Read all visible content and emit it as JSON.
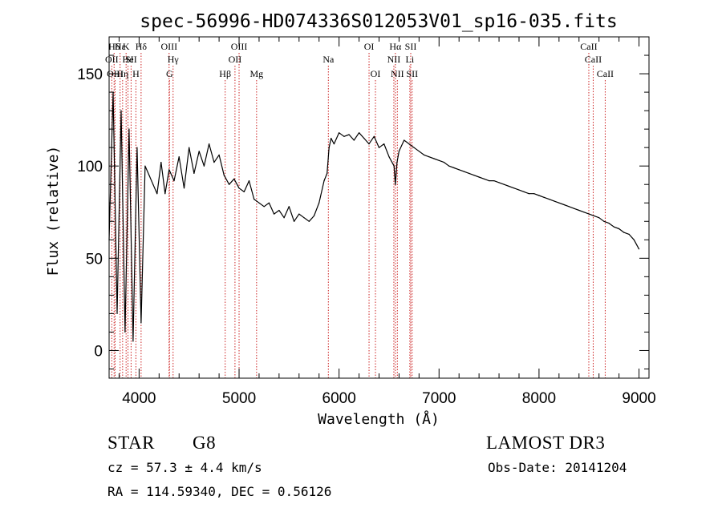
{
  "chart_data": {
    "type": "line",
    "title": "spec-56996-HD074336S012053V01_sp16-035.fits",
    "xlabel": "Wavelength (Å)",
    "ylabel": "Flux (relative)",
    "xlim": [
      3700,
      9100
    ],
    "ylim": [
      -15,
      170
    ],
    "xticks": [
      4000,
      5000,
      6000,
      7000,
      8000,
      9000
    ],
    "yticks": [
      0,
      50,
      100,
      150
    ],
    "series": [
      {
        "name": "flux",
        "x": [
          3700,
          3740,
          3780,
          3820,
          3860,
          3900,
          3940,
          3980,
          4020,
          4060,
          4100,
          4140,
          4180,
          4220,
          4260,
          4300,
          4350,
          4400,
          4450,
          4500,
          4550,
          4600,
          4650,
          4700,
          4750,
          4800,
          4850,
          4900,
          4950,
          5000,
          5050,
          5100,
          5150,
          5200,
          5250,
          5300,
          5350,
          5400,
          5450,
          5500,
          5550,
          5600,
          5650,
          5700,
          5750,
          5800,
          5850,
          5880,
          5900,
          5920,
          5950,
          6000,
          6050,
          6100,
          6150,
          6200,
          6250,
          6300,
          6350,
          6400,
          6450,
          6500,
          6550,
          6563,
          6580,
          6600,
          6650,
          6700,
          6750,
          6800,
          6850,
          6900,
          6950,
          7000,
          7050,
          7100,
          7150,
          7200,
          7250,
          7300,
          7350,
          7400,
          7450,
          7500,
          7550,
          7600,
          7650,
          7700,
          7750,
          7800,
          7850,
          7900,
          7950,
          8000,
          8050,
          8100,
          8150,
          8200,
          8250,
          8300,
          8350,
          8400,
          8450,
          8500,
          8550,
          8600,
          8650,
          8700,
          8750,
          8800,
          8850,
          8900,
          8950,
          9000
        ],
        "values": [
          60,
          140,
          20,
          130,
          10,
          120,
          5,
          110,
          15,
          100,
          95,
          90,
          85,
          102,
          85,
          98,
          92,
          105,
          88,
          110,
          96,
          108,
          100,
          112,
          102,
          106,
          95,
          90,
          93,
          88,
          86,
          92,
          82,
          80,
          78,
          80,
          74,
          76,
          72,
          78,
          70,
          74,
          72,
          70,
          73,
          80,
          92,
          96,
          110,
          115,
          112,
          118,
          116,
          117,
          114,
          118,
          115,
          112,
          116,
          110,
          112,
          105,
          100,
          90,
          102,
          108,
          114,
          112,
          110,
          108,
          106,
          105,
          104,
          103,
          102,
          100,
          99,
          98,
          97,
          96,
          95,
          94,
          93,
          92,
          92,
          91,
          90,
          89,
          88,
          87,
          86,
          85,
          85,
          84,
          83,
          82,
          81,
          80,
          79,
          78,
          77,
          76,
          75,
          74,
          73,
          72,
          70,
          69,
          67,
          66,
          64,
          63,
          60,
          55
        ]
      }
    ],
    "line_markers": [
      {
        "label": "Hδ",
        "x": 3750,
        "row": 1
      },
      {
        "label": "Hε",
        "x": 3810,
        "row": 1
      },
      {
        "label": "K",
        "x": 3870,
        "row": 1
      },
      {
        "label": "Hδ",
        "x": 4020,
        "row": 1
      },
      {
        "label": "OIII",
        "x": 4300,
        "row": 1
      },
      {
        "label": "OIII",
        "x": 5000,
        "row": 1
      },
      {
        "label": "OI",
        "x": 6300,
        "row": 1
      },
      {
        "label": "Hα",
        "x": 6563,
        "row": 1
      },
      {
        "label": "SII",
        "x": 6717,
        "row": 1
      },
      {
        "label": "CaII",
        "x": 8498,
        "row": 1
      },
      {
        "label": "OII",
        "x": 3727,
        "row": 2
      },
      {
        "label": "He",
        "x": 3889,
        "row": 2
      },
      {
        "label": "SII",
        "x": 3920,
        "row": 2
      },
      {
        "label": "Hγ",
        "x": 4340,
        "row": 2
      },
      {
        "label": "OII",
        "x": 4959,
        "row": 2
      },
      {
        "label": "Na",
        "x": 5893,
        "row": 2
      },
      {
        "label": "NII",
        "x": 6548,
        "row": 2
      },
      {
        "label": "Li",
        "x": 6708,
        "row": 2
      },
      {
        "label": "CaII",
        "x": 8542,
        "row": 2
      },
      {
        "label": "OIII",
        "x": 3760,
        "row": 3
      },
      {
        "label": "Hη",
        "x": 3835,
        "row": 3
      },
      {
        "label": "H",
        "x": 3968,
        "row": 3
      },
      {
        "label": "G",
        "x": 4304,
        "row": 3
      },
      {
        "label": "Hβ",
        "x": 4861,
        "row": 3
      },
      {
        "label": "Mg",
        "x": 5175,
        "row": 3
      },
      {
        "label": "OI",
        "x": 6364,
        "row": 3
      },
      {
        "label": "NII",
        "x": 6583,
        "row": 3
      },
      {
        "label": "SII",
        "x": 6731,
        "row": 3
      },
      {
        "label": "CaII",
        "x": 8662,
        "row": 3
      }
    ],
    "colors": {
      "spectrum": "#000000",
      "markers": "#cc2222",
      "axes": "#000000"
    }
  },
  "info": {
    "object_class": "STAR",
    "subclass": "G8",
    "survey": "LAMOST DR3",
    "cz": "cz = 57.3 ± 4.4 km/s",
    "obs_date": "Obs-Date: 20141204",
    "coords": "RA = 114.59340, DEC =   0.56126"
  }
}
